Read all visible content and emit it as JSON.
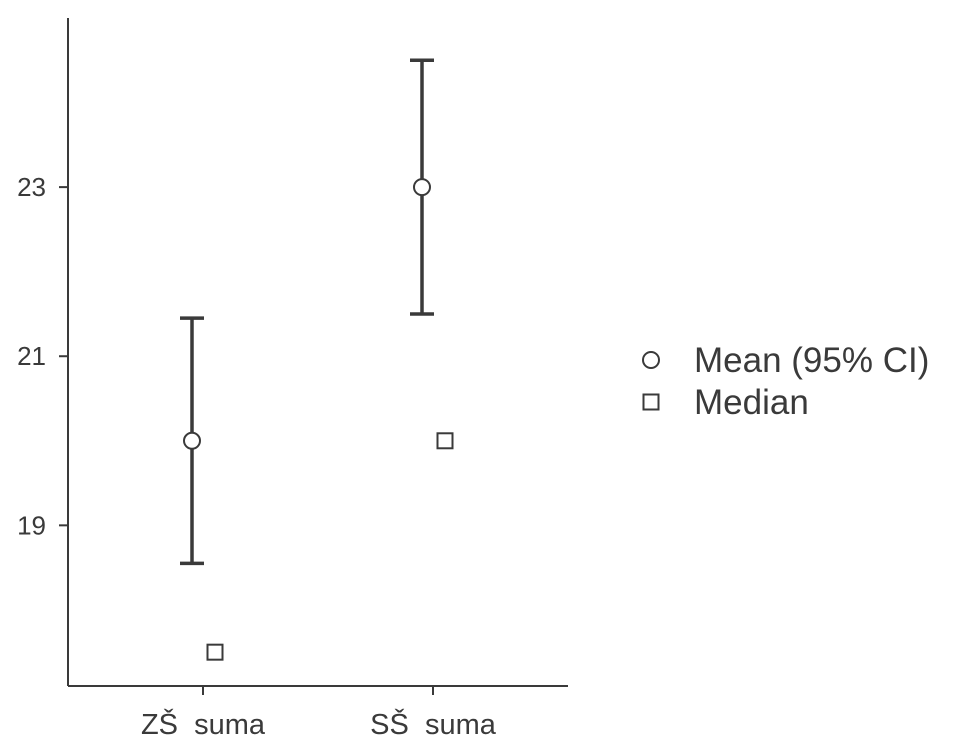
{
  "chart_data": {
    "type": "scatter",
    "categories": [
      "ZŠ  suma",
      "SŠ  suma"
    ],
    "series": [
      {
        "name": "Mean (95% CI)",
        "marker": "circle",
        "values": [
          20.0,
          23.0
        ],
        "ci_lower": [
          18.55,
          21.5
        ],
        "ci_upper": [
          21.45,
          24.5
        ]
      },
      {
        "name": "Median",
        "marker": "square",
        "values": [
          17.5,
          20.0
        ]
      }
    ],
    "yticks": [
      19,
      21,
      23
    ],
    "ytick_labels": [
      "19",
      "21",
      "23"
    ],
    "ylim": [
      17.1,
      25.0
    ],
    "xlabel": "",
    "ylabel": "",
    "grid": false,
    "legend_position": "right",
    "colors": {
      "ink": "#3a3a3a",
      "fill": "#ffffff"
    }
  }
}
